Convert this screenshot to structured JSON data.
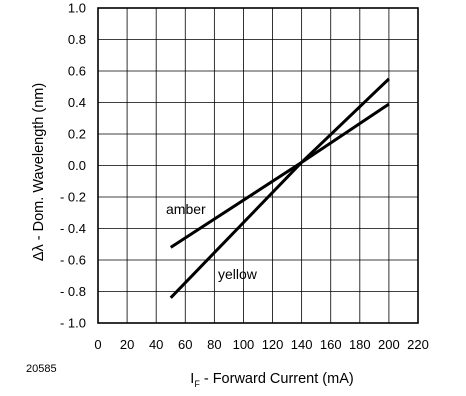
{
  "chart_data": {
    "type": "line",
    "xlabel": "I",
    "xlabel_sub": "F",
    "xlabel_rest": " - Forward Current (mA)",
    "ylabel": "Δλ - Dom. Wavelength (nm)",
    "xlim": [
      0,
      220
    ],
    "ylim": [
      -1.0,
      1.0
    ],
    "xticks": [
      0,
      20,
      40,
      60,
      80,
      100,
      120,
      140,
      160,
      180,
      200,
      220
    ],
    "yticks": [
      1.0,
      0.8,
      0.6,
      0.4,
      0.2,
      0.0,
      -0.2,
      -0.4,
      -0.6,
      -0.8,
      -1.0
    ],
    "xtick_labels": [
      "0",
      "20",
      "40",
      "60",
      "80",
      "100",
      "120",
      "140",
      "160",
      "180",
      "200",
      "220"
    ],
    "ytick_labels": [
      "1.0",
      "0.8",
      "0.6",
      "0.4",
      "0.2",
      "0.0",
      "- 0.2",
      "- 0.4",
      "- 0.6",
      "- 0.8",
      "- 1.0"
    ],
    "grid": true,
    "series": [
      {
        "name": "amber",
        "x": [
          50,
          140,
          200
        ],
        "y": [
          -0.52,
          0.02,
          0.39
        ]
      },
      {
        "name": "yellow",
        "x": [
          50,
          140,
          200
        ],
        "y": [
          -0.84,
          0.02,
          0.55
        ]
      }
    ],
    "figure_id": "20585"
  }
}
